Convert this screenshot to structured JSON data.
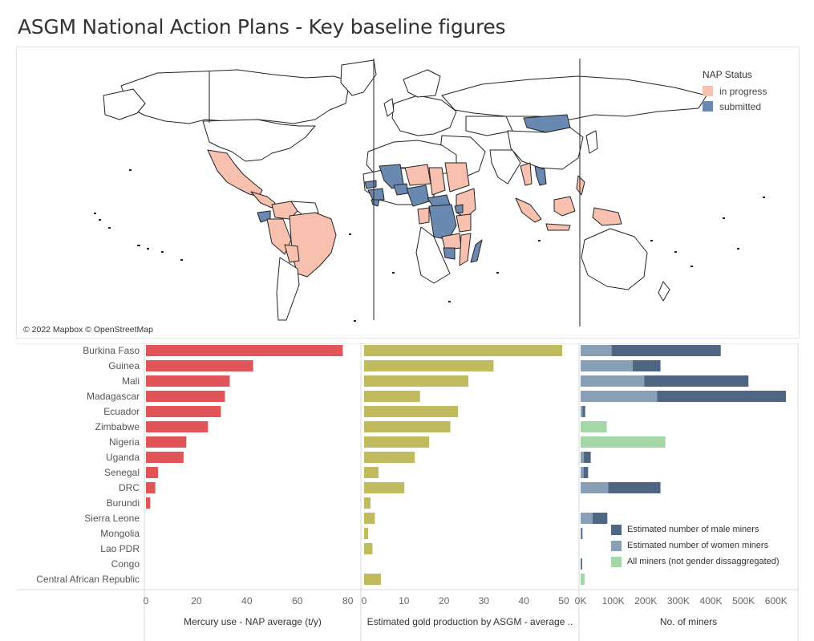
{
  "title": "ASGM National Action Plans - Key baseline figures",
  "colors": {
    "in_progress": "#f8c0ae",
    "submitted": "#6a89b1",
    "mercury": "#e05559",
    "gold": "#c1bb5f",
    "male": "#4e6682",
    "women": "#889fb6",
    "all_miners": "#a5d6a6"
  },
  "map": {
    "attribution": "© 2022 Mapbox © OpenStreetMap",
    "legend": {
      "title": "NAP Status",
      "items": [
        {
          "label": "in progress",
          "color": "#f8c0ae"
        },
        {
          "label": "submitted",
          "color": "#6a89b1"
        }
      ]
    }
  },
  "chart_data": [
    {
      "type": "bar",
      "orientation": "horizontal",
      "title": "",
      "xlabel": "Mercury use - NAP average  (t/y)",
      "categories": [
        "Burkina Faso",
        "Guinea",
        "Mali",
        "Madagascar",
        "Ecuador",
        "Zimbabwe",
        "Nigeria",
        "Uganda",
        "Senegal",
        "DRC",
        "Burundi",
        "Sierra Leone",
        "Mongolia",
        "Lao PDR",
        "Congo",
        "Central African Republic"
      ],
      "values": [
        78,
        42.5,
        33.2,
        31.3,
        29.7,
        24.6,
        16,
        14.9,
        4.8,
        3.7,
        1.7,
        0,
        0,
        0,
        0,
        0
      ],
      "xlim": [
        0,
        82
      ],
      "xticks": [
        "0",
        "20",
        "40",
        "60",
        "80"
      ],
      "color": "#e05559"
    },
    {
      "type": "bar",
      "orientation": "horizontal",
      "title": "",
      "xlabel": "Estimated gold production by ASGM - average ..",
      "categories": [
        "Burkina Faso",
        "Guinea",
        "Mali",
        "Madagascar",
        "Ecuador",
        "Zimbabwe",
        "Nigeria",
        "Uganda",
        "Senegal",
        "DRC",
        "Burundi",
        "Sierra Leone",
        "Mongolia",
        "Lao PDR",
        "Congo",
        "Central African Republic"
      ],
      "values": [
        49.6,
        32.4,
        26.1,
        14,
        23.5,
        21.6,
        16.3,
        12.7,
        3.6,
        10.1,
        1.6,
        2.7,
        1,
        2.1,
        0,
        4.2
      ],
      "xlim": [
        0,
        52
      ],
      "xticks": [
        "0",
        "10",
        "20",
        "30",
        "40",
        "50"
      ],
      "color": "#c1bb5f"
    },
    {
      "type": "bar",
      "orientation": "horizontal",
      "stacked": true,
      "title": "",
      "xlabel": "No. of miners",
      "categories": [
        "Burkina Faso",
        "Guinea",
        "Mali",
        "Madagascar",
        "Ecuador",
        "Zimbabwe",
        "Nigeria",
        "Uganda",
        "Senegal",
        "DRC",
        "Burundi",
        "Sierra Leone",
        "Mongolia",
        "Lao PDR",
        "Congo",
        "Central African Republic"
      ],
      "series": [
        {
          "name": "Estimated number of women miners",
          "values": [
            95000,
            160000,
            195000,
            235000,
            6000,
            0,
            0,
            10000,
            9000,
            85000,
            0,
            37000,
            2000,
            0,
            1000,
            0
          ]
        },
        {
          "name": "Estimated number of male miners",
          "values": [
            335000,
            85000,
            320000,
            395000,
            8000,
            0,
            0,
            21000,
            14000,
            160000,
            0,
            45000,
            1000,
            0,
            1000,
            0
          ]
        },
        {
          "name": "All miners (not gender dissaggregated)",
          "values": [
            0,
            0,
            0,
            0,
            0,
            80000,
            260000,
            0,
            0,
            0,
            0,
            0,
            0,
            0,
            0,
            12000
          ]
        }
      ],
      "xlim": [
        0,
        630000
      ],
      "xticks": [
        "0K",
        "100K",
        "200K",
        "300K",
        "400K",
        "500K",
        "600K"
      ],
      "legend": [
        "Estimated number of male miners",
        "Estimated number of women miners",
        "All miners (not gender dissaggregated)"
      ]
    }
  ]
}
